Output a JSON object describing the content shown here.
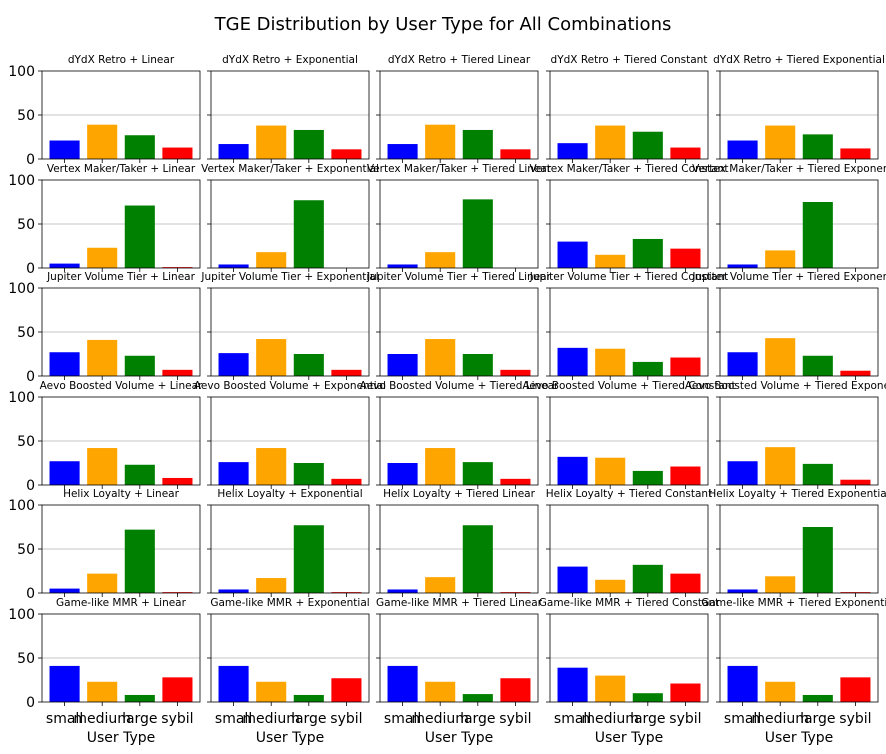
{
  "chart_data": {
    "type": "bar",
    "title": "TGE Distribution by User Type for All Combinations",
    "xlabel": "User Type",
    "ylabel": "",
    "ylim": [
      0,
      100
    ],
    "yticks": [
      "0",
      "50",
      "100"
    ],
    "grid": "y",
    "categories": [
      "small",
      "medium",
      "large",
      "sybil"
    ],
    "colors": [
      "#0000ff",
      "#ffa500",
      "#008000",
      "#ff0000"
    ],
    "subplots": [
      {
        "title": "dYdX Retro + Linear",
        "values": [
          21,
          39,
          27,
          13
        ]
      },
      {
        "title": "dYdX Retro + Exponential",
        "values": [
          17,
          38,
          33,
          11
        ]
      },
      {
        "title": "dYdX Retro + Tiered Linear",
        "values": [
          17,
          39,
          33,
          11
        ]
      },
      {
        "title": "dYdX Retro + Tiered Constant",
        "values": [
          18,
          38,
          31,
          13
        ]
      },
      {
        "title": "dYdX Retro + Tiered Exponential",
        "values": [
          21,
          38,
          28,
          12
        ]
      },
      {
        "title": "Vertex Maker/Taker + Linear",
        "values": [
          5,
          23,
          71,
          1
        ]
      },
      {
        "title": "Vertex Maker/Taker + Exponential",
        "values": [
          4,
          18,
          77,
          0
        ]
      },
      {
        "title": "Vertex Maker/Taker + Tiered Linear",
        "values": [
          4,
          18,
          78,
          0
        ]
      },
      {
        "title": "Vertex Maker/Taker + Tiered Constant",
        "values": [
          30,
          15,
          33,
          22
        ]
      },
      {
        "title": "Vertex Maker/Taker + Tiered Exponential",
        "values": [
          4,
          20,
          75,
          0
        ]
      },
      {
        "title": "Jupiter Volume Tier + Linear",
        "values": [
          27,
          41,
          23,
          7
        ]
      },
      {
        "title": "Jupiter Volume Tier + Exponential",
        "values": [
          26,
          42,
          25,
          7
        ]
      },
      {
        "title": "Jupiter Volume Tier + Tiered Linear",
        "values": [
          25,
          42,
          25,
          7
        ]
      },
      {
        "title": "Jupiter Volume Tier + Tiered Constant",
        "values": [
          32,
          31,
          16,
          21
        ]
      },
      {
        "title": "Jupiter Volume Tier + Tiered Exponential",
        "values": [
          27,
          43,
          23,
          6
        ]
      },
      {
        "title": "Aevo Boosted Volume + Linear",
        "values": [
          27,
          42,
          23,
          8
        ]
      },
      {
        "title": "Aevo Boosted Volume + Exponential",
        "values": [
          26,
          42,
          25,
          7
        ]
      },
      {
        "title": "Aevo Boosted Volume + Tiered Linear",
        "values": [
          25,
          42,
          26,
          7
        ]
      },
      {
        "title": "Aevo Boosted Volume + Tiered Constant",
        "values": [
          32,
          31,
          16,
          21
        ]
      },
      {
        "title": "Aevo Boosted Volume + Tiered Exponential",
        "values": [
          27,
          43,
          24,
          6
        ]
      },
      {
        "title": "Helix Loyalty + Linear",
        "values": [
          5,
          22,
          72,
          1
        ]
      },
      {
        "title": "Helix Loyalty + Exponential",
        "values": [
          4,
          17,
          77,
          1
        ]
      },
      {
        "title": "Helix Loyalty + Tiered Linear",
        "values": [
          4,
          18,
          77,
          1
        ]
      },
      {
        "title": "Helix Loyalty + Tiered Constant",
        "values": [
          30,
          15,
          32,
          22
        ]
      },
      {
        "title": "Helix Loyalty + Tiered Exponential",
        "values": [
          4,
          19,
          75,
          1
        ]
      },
      {
        "title": "Game-like MMR + Linear",
        "values": [
          41,
          23,
          8,
          28
        ]
      },
      {
        "title": "Game-like MMR + Exponential",
        "values": [
          41,
          23,
          8,
          27
        ]
      },
      {
        "title": "Game-like MMR + Tiered Linear",
        "values": [
          41,
          23,
          9,
          27
        ]
      },
      {
        "title": "Game-like MMR + Tiered Constant",
        "values": [
          39,
          30,
          10,
          21
        ]
      },
      {
        "title": "Game-like MMR + Tiered Exponential",
        "values": [
          41,
          23,
          8,
          28
        ]
      }
    ]
  }
}
